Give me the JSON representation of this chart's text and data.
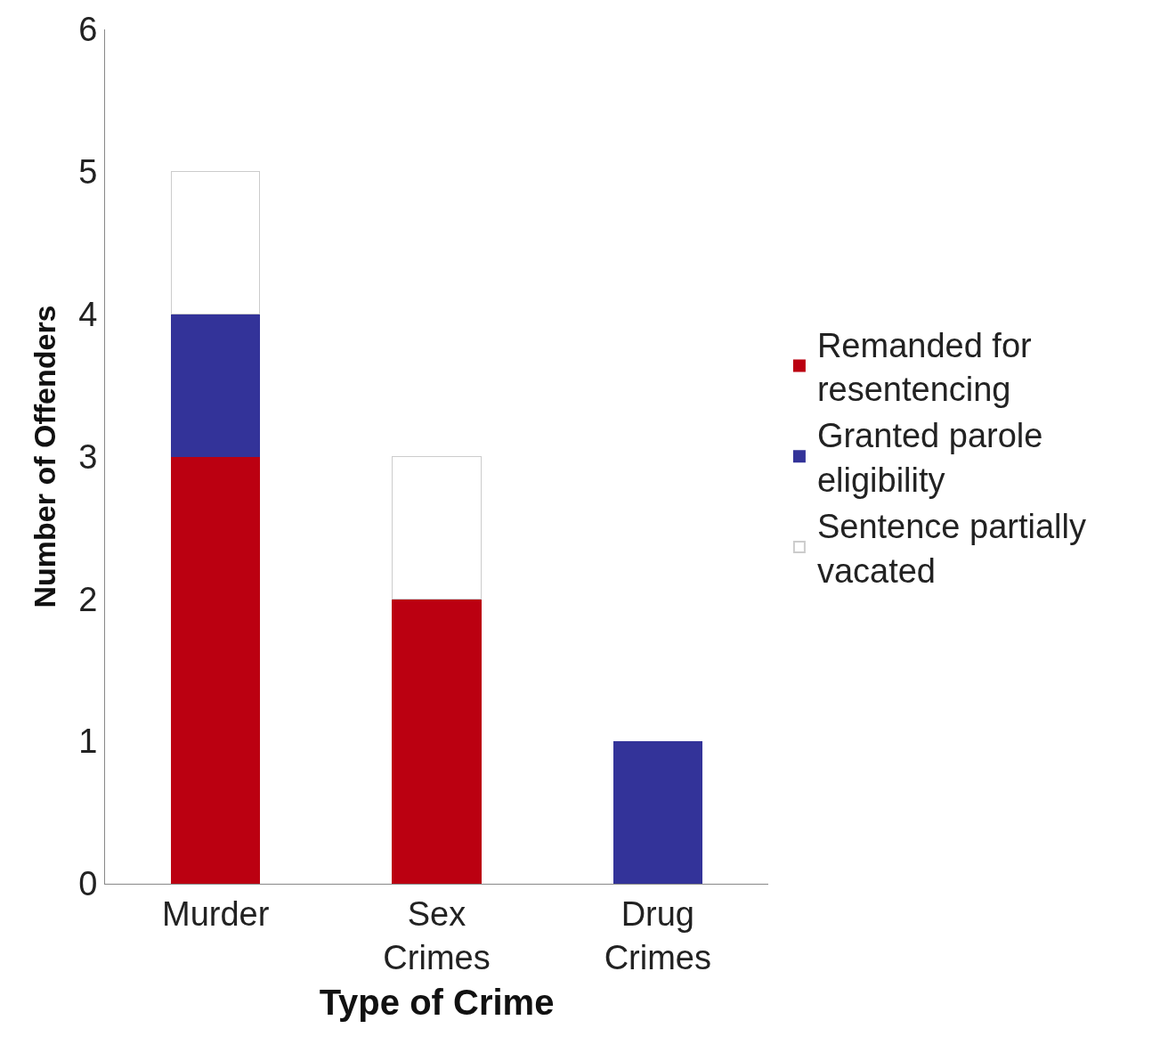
{
  "chart_data": {
    "type": "bar",
    "xlabel": "Type of Crime",
    "ylabel": "Number of Offenders",
    "categories": [
      "Murder",
      "Sex Crimes",
      "Drug Crimes"
    ],
    "series": [
      {
        "name": "Remanded for resentencing",
        "color": "#bb0011",
        "values": [
          3,
          2,
          0
        ]
      },
      {
        "name": "Granted parole eligibility",
        "color": "#333399",
        "values": [
          1,
          0,
          1
        ]
      },
      {
        "name": "Sentence partially vacated",
        "color": "#ffffff",
        "values": [
          1,
          1,
          0
        ]
      }
    ],
    "stacked": true,
    "ylim": [
      0,
      6
    ],
    "yticks": [
      0,
      1,
      2,
      3,
      4,
      5,
      6
    ],
    "legend": "right"
  }
}
